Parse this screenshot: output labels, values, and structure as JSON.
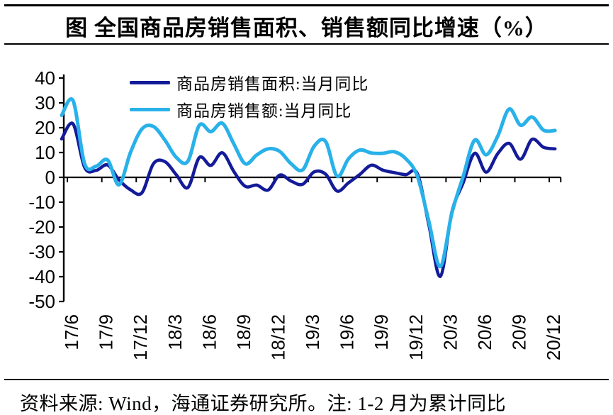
{
  "header": {
    "title": "图 全国商品房销售面积、销售额同比增速（%）"
  },
  "footer": {
    "text": "资料来源: Wind，海通证券研究所。注: 1-2 月为累计同比"
  },
  "colors": {
    "axis": "#000000",
    "background": "#ffffff",
    "area_series": "#141b99",
    "value_series": "#29b1e9"
  },
  "chart_data": {
    "type": "line",
    "title": "图 全国商品房销售面积、销售额同比增速（%）",
    "unit": "%",
    "grid": false,
    "smoothed": true,
    "legend_position": "top-left-inside",
    "ylim": [
      -50,
      40
    ],
    "y_ticks": [
      40,
      30,
      20,
      10,
      0,
      -10,
      -20,
      -30,
      -40,
      -50
    ],
    "x": [
      "17/5",
      "17/6",
      "17/7",
      "17/8",
      "17/9",
      "17/10",
      "17/11",
      "17/12",
      "18/1",
      "18/2",
      "18/3",
      "18/4",
      "18/5",
      "18/6",
      "18/7",
      "18/8",
      "18/9",
      "18/10",
      "18/11",
      "18/12",
      "19/1",
      "19/2",
      "19/3",
      "19/4",
      "19/5",
      "19/6",
      "19/7",
      "19/8",
      "19/9",
      "19/10",
      "19/11",
      "19/12",
      "20/1",
      "20/2",
      "20/3",
      "20/4",
      "20/5",
      "20/6",
      "20/7",
      "20/8",
      "20/9",
      "20/10",
      "20/11",
      "20/12"
    ],
    "x_tick_labels": [
      "17/6",
      "17/9",
      "17/12",
      "18/3",
      "18/6",
      "18/9",
      "18/12",
      "19/3",
      "19/6",
      "19/9",
      "19/12",
      "20/3",
      "20/6",
      "20/9",
      "20/12"
    ],
    "series": [
      {
        "name": "商品房销售面积:当月同比",
        "color": "#141b99",
        "values": [
          15.5,
          21.5,
          4.0,
          2.8,
          5.0,
          -1.0,
          -5.0,
          -6.2,
          5.5,
          6.3,
          1.0,
          -4.1,
          8.0,
          4.8,
          9.9,
          2.4,
          -3.6,
          -3.1,
          -5.1,
          0.9,
          -1.5,
          -2.8,
          2.2,
          1.3,
          -5.5,
          -2.2,
          1.2,
          4.9,
          2.9,
          1.9,
          1.1,
          1.5,
          -19.0,
          -39.9,
          -14.1,
          -2.1,
          9.7,
          2.1,
          9.5,
          13.7,
          7.3,
          15.3,
          12.1,
          11.5
        ]
      },
      {
        "name": "商品房销售额:当月同比",
        "color": "#29b1e9",
        "values": [
          25.0,
          30.8,
          5.5,
          4.5,
          7.0,
          -3.0,
          10.0,
          19.5,
          20.5,
          15.0,
          8.0,
          6.5,
          21.0,
          18.4,
          21.8,
          13.5,
          5.5,
          9.0,
          11.5,
          10.5,
          5.5,
          3.0,
          12.5,
          14.5,
          0.5,
          7.5,
          11.0,
          9.8,
          9.7,
          10.3,
          7.5,
          0.5,
          -17.7,
          -35.9,
          -14.6,
          0.5,
          15.0,
          9.1,
          16.5,
          27.5,
          21.0,
          24.3,
          19.0,
          18.9
        ]
      }
    ],
    "source_note": "资料来源: Wind，海通证券研究所。注: 1-2 月为累计同比"
  }
}
